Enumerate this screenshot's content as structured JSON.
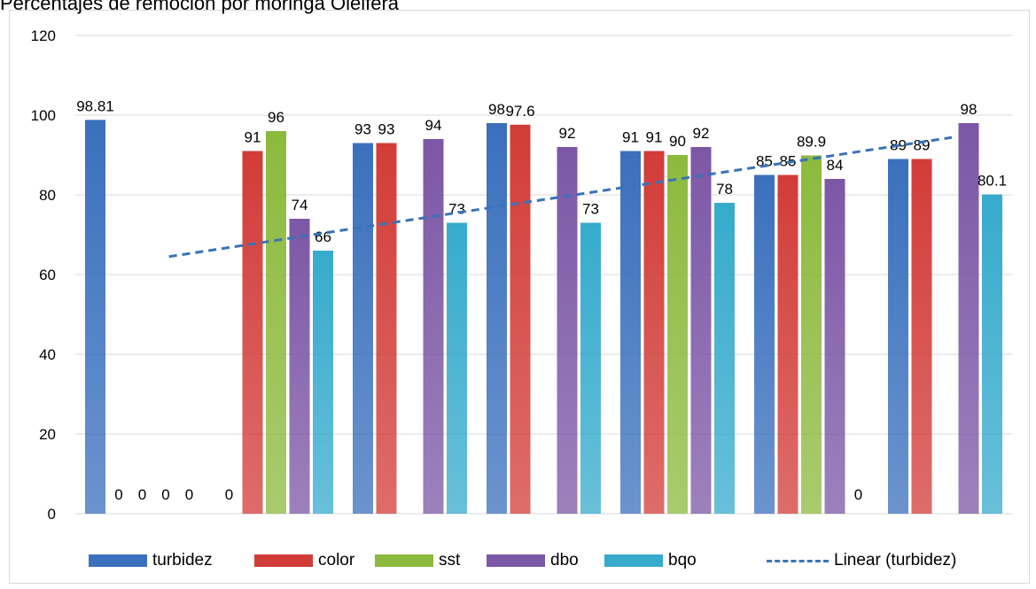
{
  "chart_data": {
    "type": "bar",
    "title": "Percentajes de remoción por moringa Oleifera",
    "ylim": [
      0,
      120
    ],
    "yticks": [
      0,
      20,
      40,
      60,
      80,
      100,
      120
    ],
    "group_count": 7,
    "series": [
      {
        "name": "turbidez",
        "color": "#3a70bd",
        "values": [
          98.81,
          0,
          93,
          98,
          91,
          85,
          89
        ]
      },
      {
        "name": "color",
        "color": "#d23c38",
        "values": [
          0,
          91,
          93,
          97.6,
          91,
          85,
          89
        ]
      },
      {
        "name": "sst",
        "color": "#8cba3e",
        "values": [
          0,
          96,
          null,
          null,
          90,
          89.9,
          null
        ]
      },
      {
        "name": "dbo",
        "color": "#7c57a6",
        "values": [
          0,
          74,
          94,
          92,
          92,
          84,
          98
        ]
      },
      {
        "name": "bqo",
        "color": "#36abcc",
        "values": [
          0,
          66,
          73,
          73,
          78,
          0,
          80.1
        ]
      }
    ],
    "trendline": {
      "name": "Linear (turbidez)",
      "color": "#3b72b8",
      "y_start": 64.5,
      "y_end": 94.4
    },
    "legend_position": "bottom",
    "grid": true
  }
}
